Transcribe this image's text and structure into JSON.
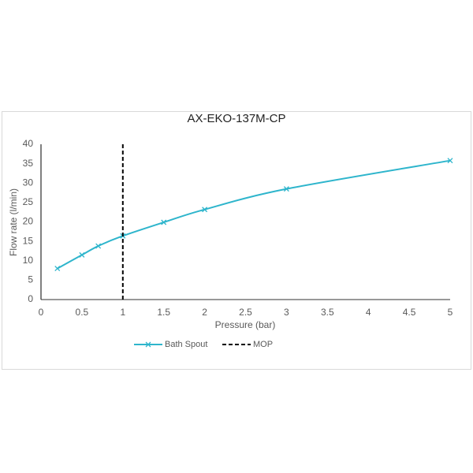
{
  "chart_data": {
    "type": "line",
    "title": "AX-EKO-137M-CP",
    "xlabel": "Pressure (bar)",
    "ylabel": "Flow rate (l/min)",
    "series": [
      {
        "name": "Bath Spout",
        "color": "#2eb5cc",
        "marker": "x",
        "line_style": "solid",
        "x": [
          0.2,
          0.5,
          0.7,
          1,
          1.5,
          2,
          3,
          5
        ],
        "values": [
          8,
          11.5,
          13.8,
          16.4,
          19.9,
          23.2,
          28.5,
          35.8
        ]
      },
      {
        "name": "MOP",
        "color": "#000000",
        "marker": "none",
        "line_style": "dashed",
        "x": [
          1,
          1
        ],
        "values": [
          0,
          40
        ]
      }
    ],
    "xlim": [
      0,
      5
    ],
    "xticks": [
      0,
      0.5,
      1,
      1.5,
      2,
      2.5,
      3,
      3.5,
      4,
      4.5,
      5
    ],
    "ylim": [
      0,
      40
    ],
    "yticks": [
      0,
      5,
      10,
      15,
      20,
      25,
      30,
      35,
      40
    ],
    "grid": false,
    "legend": "bottom"
  }
}
